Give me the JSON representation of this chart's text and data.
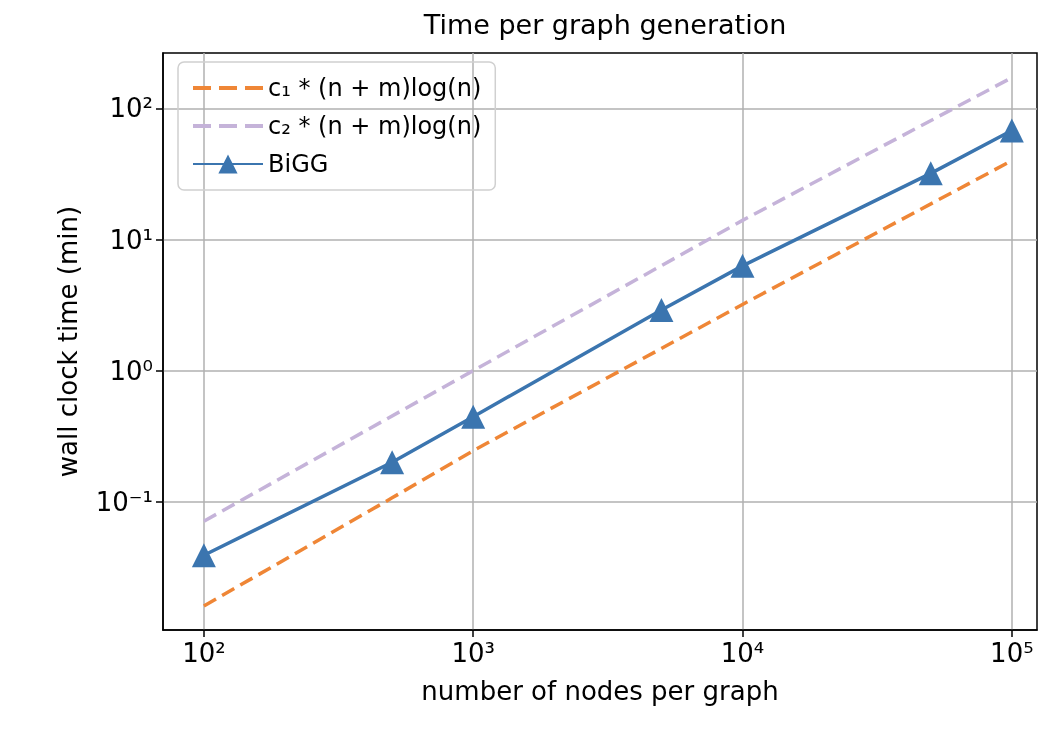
{
  "chart_data": {
    "type": "line",
    "title": "Time per graph generation",
    "xlabel": "number of nodes per graph",
    "ylabel": "wall clock time (min)",
    "log": "xy",
    "grid": true,
    "legend": "top left",
    "xlim": [
      70.5,
      124000
    ],
    "ylim": [
      0.0105,
      265
    ],
    "xticks": [
      {
        "value": 100,
        "label": "10²"
      },
      {
        "value": 1000,
        "label": "10³"
      },
      {
        "value": 10000,
        "label": "10⁴"
      },
      {
        "value": 100000,
        "label": "10⁵"
      }
    ],
    "yticks": [
      {
        "value": 0.1,
        "label": "10⁻¹"
      },
      {
        "value": 1,
        "label": "10⁰"
      },
      {
        "value": 10,
        "label": "10¹"
      },
      {
        "value": 100,
        "label": "10²"
      }
    ],
    "series": [
      {
        "name": "c₁ * (n + m)log(n)",
        "color": "#ef8636",
        "line_style": "dashed",
        "marker": "none",
        "x": [
          100,
          500,
          1000,
          10000,
          100000
        ],
        "values": [
          0.016,
          0.107,
          0.245,
          3.2,
          40
        ]
      },
      {
        "name": "c₂ * (n + m)log(n)",
        "color": "#c5b3d9",
        "line_style": "dashed",
        "marker": "none",
        "x": [
          100,
          1000,
          10000,
          100000
        ],
        "values": [
          0.071,
          1.0,
          14,
          172
        ]
      },
      {
        "name": "BiGG",
        "color": "#3b75af",
        "line_style": "solid",
        "marker": "triangle",
        "x": [
          100,
          500,
          1000,
          5000,
          10000,
          50000,
          100000
        ],
        "values": [
          0.039,
          0.2,
          0.445,
          2.9,
          6.3,
          32,
          68
        ]
      }
    ]
  }
}
